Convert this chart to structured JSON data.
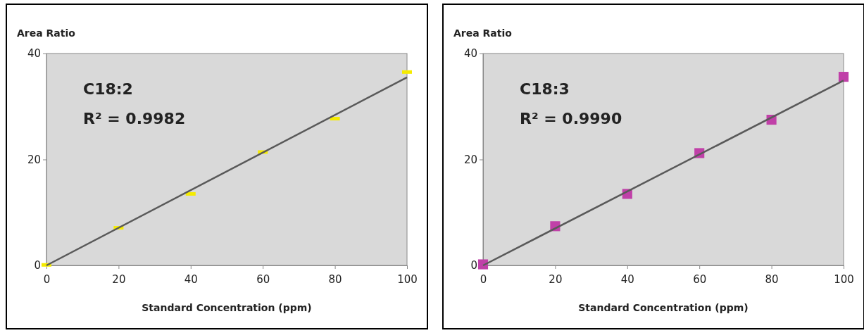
{
  "chart_data": [
    {
      "type": "scatter",
      "ylabel": "Area Ratio",
      "xlabel": "Standard Concentration (ppm)",
      "annotations": [
        "C18:2",
        "R² = 0.9982"
      ],
      "xlim": [
        0,
        100
      ],
      "ylim": [
        0,
        40
      ],
      "xticks": [
        0,
        20,
        40,
        60,
        80,
        100
      ],
      "yticks": [
        0,
        20,
        40
      ],
      "grid": false,
      "series": [
        {
          "color": "#f5eb00",
          "x": [
            0,
            20,
            40,
            60,
            80,
            100
          ],
          "values": [
            0.1,
            7.1,
            13.5,
            21.4,
            27.7,
            36.5
          ]
        },
        {
          "type": "line",
          "color": "#595959",
          "x": [
            0,
            100
          ],
          "values": [
            0,
            35.5
          ],
          "marker": "none"
        }
      ]
    },
    {
      "type": "scatter",
      "ylabel": "Area Ratio",
      "xlabel": "Standard Concentration (ppm)",
      "annotations": [
        "C18:3",
        "R² = 0.9990"
      ],
      "xlim": [
        0,
        100
      ],
      "ylim": [
        0,
        40
      ],
      "xticks": [
        0,
        20,
        40,
        60,
        80,
        100
      ],
      "yticks": [
        0,
        20,
        40
      ],
      "grid": false,
      "series": [
        {
          "marker": "square",
          "color": "#c040a8",
          "x": [
            0,
            20,
            40,
            60,
            80,
            100
          ],
          "values": [
            0.2,
            7.4,
            13.5,
            21.2,
            27.5,
            35.6
          ]
        },
        {
          "type": "line",
          "color": "#595959",
          "x": [
            0,
            100
          ],
          "values": [
            0,
            34.9
          ],
          "marker": "none"
        }
      ]
    }
  ]
}
